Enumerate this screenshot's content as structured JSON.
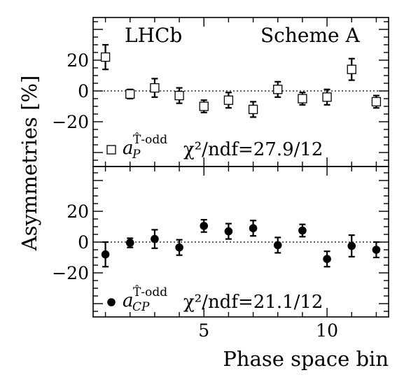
{
  "chart_data": [
    {
      "type": "scatter",
      "panel": "top",
      "marker": "open-square",
      "x": [
        1,
        2,
        3,
        4,
        5,
        6,
        7,
        8,
        9,
        10,
        11,
        12
      ],
      "y": [
        22,
        -2,
        2,
        -3,
        -10,
        -6,
        -12,
        1,
        -5,
        -4,
        14,
        -7
      ],
      "yerr": [
        8,
        3,
        6,
        5,
        4,
        5,
        5,
        5,
        4,
        5,
        7,
        4
      ],
      "xlim": [
        0.5,
        12.5
      ],
      "ylim": [
        -48,
        48
      ],
      "yticks": [
        "20",
        "0",
        "−20"
      ],
      "series_symbol": "a",
      "series_sub": "P",
      "series_sup": "T̂-odd",
      "chi2_label": "χ²/ndf=27.9/12",
      "text_left": "LHCb",
      "text_right": "Scheme A"
    },
    {
      "type": "scatter",
      "panel": "bottom",
      "marker": "filled-circle",
      "x": [
        1,
        2,
        3,
        4,
        5,
        6,
        7,
        8,
        9,
        10,
        11,
        12
      ],
      "y": [
        -8,
        -0.5,
        2,
        -3.5,
        10.5,
        7,
        9,
        -2,
        7.5,
        -11,
        -2.5,
        -5
      ],
      "yerr": [
        8,
        3,
        6,
        5,
        4,
        5,
        5,
        5,
        4,
        5,
        7,
        5
      ],
      "xlim": [
        0.5,
        12.5
      ],
      "ylim": [
        -48,
        48
      ],
      "yticks": [
        "20",
        "0",
        "−20"
      ],
      "xticks": [
        "5",
        "10"
      ],
      "series_symbol": "a",
      "series_sub": "CP",
      "series_sup": "T̂-odd",
      "chi2_label": "χ²/ndf=21.1/12"
    }
  ],
  "axes": {
    "ylabel": "Asymmetries [%]",
    "xlabel": "Phase space bin"
  },
  "colors": {
    "ink": "#000000",
    "background": "#ffffff"
  }
}
